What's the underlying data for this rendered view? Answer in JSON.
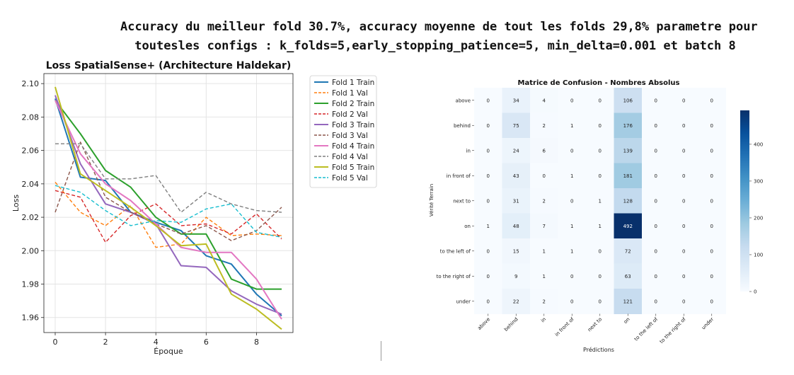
{
  "header": {
    "line1": "Accuracy du meilleur fold 30.7%, accuracy moyenne de tout les folds  29,8% parametre pour",
    "line2": "toutesles configs : k_folds=5,early_stopping_patience=5, min_delta=0.001 et batch 8"
  },
  "chart_data": [
    {
      "type": "line",
      "title": "Loss SpatialSense+ (Architecture Haldekar)",
      "xlabel": "Époque",
      "ylabel": "Loss",
      "xlim": [
        -0.45,
        9.45
      ],
      "ylim": [
        1.951,
        2.106
      ],
      "xticks": [
        0,
        2,
        4,
        6,
        8
      ],
      "yticks": [
        1.96,
        1.98,
        2.0,
        2.02,
        2.04,
        2.06,
        2.08,
        2.1
      ],
      "ytick_labels": [
        "1.96",
        "1.98",
        "2.00",
        "2.02",
        "2.04",
        "2.06",
        "2.08",
        "2.10"
      ],
      "grid": true,
      "legend_position": "outside-right",
      "x": [
        0,
        1,
        2,
        3,
        4,
        5,
        6,
        7,
        8,
        9
      ],
      "series": [
        {
          "name": "Fold 1 Train",
          "color": "#1f77b4",
          "dash": "solid",
          "values": [
            2.091,
            2.044,
            2.042,
            2.023,
            2.017,
            2.012,
            1.997,
            1.992,
            1.974,
            1.961
          ]
        },
        {
          "name": "Fold 1 Val",
          "color": "#ff7f0e",
          "dash": "dashed",
          "values": [
            2.041,
            2.023,
            2.015,
            2.027,
            2.002,
            2.004,
            2.02,
            2.009,
            2.01,
            2.009
          ]
        },
        {
          "name": "Fold 2 Train",
          "color": "#2ca02c",
          "dash": "solid",
          "values": [
            2.09,
            2.07,
            2.048,
            2.038,
            2.02,
            2.01,
            2.01,
            1.983,
            1.977,
            1.977
          ]
        },
        {
          "name": "Fold 2 Val",
          "color": "#d62728",
          "dash": "dashed",
          "values": [
            2.036,
            2.032,
            2.005,
            2.021,
            2.028,
            2.015,
            2.016,
            2.01,
            2.022,
            2.007
          ]
        },
        {
          "name": "Fold 3 Train",
          "color": "#9467bd",
          "dash": "solid",
          "values": [
            2.093,
            2.052,
            2.028,
            2.023,
            2.016,
            1.991,
            1.99,
            1.976,
            1.968,
            1.962
          ]
        },
        {
          "name": "Fold 3 Val",
          "color": "#8c564b",
          "dash": "dashed",
          "values": [
            2.023,
            2.065,
            2.032,
            2.023,
            2.016,
            2.01,
            2.015,
            2.006,
            2.012,
            2.026
          ]
        },
        {
          "name": "Fold 4 Train",
          "color": "#e377c2",
          "dash": "solid",
          "values": [
            2.09,
            2.058,
            2.04,
            2.03,
            2.016,
            2.002,
            1.999,
            1.999,
            1.983,
            1.959
          ]
        },
        {
          "name": "Fold 4 Val",
          "color": "#7f7f7f",
          "dash": "dashed",
          "values": [
            2.064,
            2.064,
            2.043,
            2.043,
            2.045,
            2.023,
            2.035,
            2.028,
            2.024,
            2.023
          ]
        },
        {
          "name": "Fold 5 Train",
          "color": "#bcbd22",
          "dash": "solid",
          "values": [
            2.098,
            2.046,
            2.036,
            2.026,
            2.015,
            2.003,
            2.004,
            1.974,
            1.965,
            1.953
          ]
        },
        {
          "name": "Fold 5 Val",
          "color": "#17becf",
          "dash": "dashed",
          "values": [
            2.039,
            2.035,
            2.024,
            2.015,
            2.018,
            2.017,
            2.025,
            2.028,
            2.011,
            2.008
          ]
        }
      ]
    },
    {
      "type": "heatmap",
      "title": "Matrice de Confusion - Nombres Absolus",
      "xlabel": "Prédictions",
      "ylabel": "Vérité Terrain",
      "labels": [
        "above",
        "behind",
        "in",
        "in front of",
        "next to",
        "on",
        "to the left of",
        "to the right of",
        "under"
      ],
      "matrix": [
        [
          0,
          34,
          4,
          0,
          0,
          106,
          0,
          0,
          0
        ],
        [
          0,
          75,
          2,
          1,
          0,
          176,
          0,
          0,
          0
        ],
        [
          0,
          24,
          6,
          0,
          0,
          139,
          0,
          0,
          0
        ],
        [
          0,
          43,
          0,
          1,
          0,
          181,
          0,
          0,
          0
        ],
        [
          0,
          31,
          2,
          0,
          1,
          128,
          0,
          0,
          0
        ],
        [
          1,
          48,
          7,
          1,
          1,
          492,
          0,
          0,
          0
        ],
        [
          0,
          15,
          1,
          1,
          0,
          72,
          0,
          0,
          0
        ],
        [
          0,
          9,
          1,
          0,
          0,
          63,
          0,
          0,
          0
        ],
        [
          0,
          22,
          2,
          0,
          0,
          121,
          0,
          0,
          0
        ]
      ],
      "colormap": "Blues",
      "colorbar_range": [
        0,
        492
      ],
      "colorbar_ticks": [
        0,
        100,
        200,
        300,
        400
      ],
      "legend_position": "right"
    }
  ]
}
